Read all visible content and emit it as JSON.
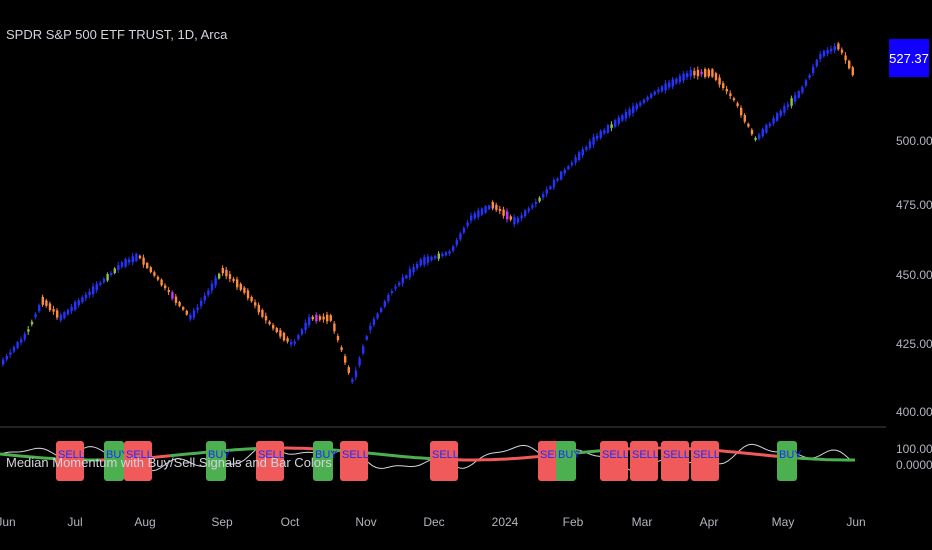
{
  "header": {
    "symbol_title": "SPDR S&P 500 ETF TRUST, 1D, Arca"
  },
  "indicator": {
    "title": "Median Momentum with Buy/Sell Signals and Bar Colors"
  },
  "price": {
    "last_price": "527.37",
    "badge_color": "#1100ff"
  },
  "price_axis": {
    "ticks": [
      "500.00",
      "475.00",
      "450.00",
      "425.00",
      "400.00"
    ]
  },
  "indicator_axis": {
    "ticks": [
      "100.00",
      "0.0000"
    ]
  },
  "time_axis": {
    "ticks": [
      "Jun",
      "Jul",
      "Aug",
      "Sep",
      "Oct",
      "Nov",
      "Dec",
      "2024",
      "Feb",
      "Mar",
      "Apr",
      "May",
      "Jun"
    ]
  },
  "signals": [
    {
      "label": "SELL",
      "type": "sell"
    },
    {
      "label": "BUY",
      "type": "buy"
    },
    {
      "label": "SELL",
      "type": "sell"
    },
    {
      "label": "BUY",
      "type": "buy"
    },
    {
      "label": "SELL",
      "type": "sell"
    },
    {
      "label": "BUY",
      "type": "buy"
    },
    {
      "label": "SELL",
      "type": "sell"
    },
    {
      "label": "SELL",
      "type": "sell"
    },
    {
      "label": "SELL",
      "type": "sell"
    },
    {
      "label": "BUY",
      "type": "buy"
    },
    {
      "label": "SELL",
      "type": "sell"
    },
    {
      "label": "SELL",
      "type": "sell"
    },
    {
      "label": "SELL",
      "type": "sell"
    },
    {
      "label": "SELL",
      "type": "sell"
    },
    {
      "label": "BUY",
      "type": "buy"
    }
  ],
  "colors": {
    "buy_box": "#4caf50",
    "sell_box": "#f05a5a",
    "signal_text": "#1a2cff",
    "median_up": "#4caf50",
    "median_down": "#f05a5a",
    "momentum": "#d1d4dc",
    "bar_up": "#2433ff",
    "bar_down": "#ff8a3d",
    "bar_up_strong": "#8bc34a",
    "bar_down_strong": "#c239ff"
  }
}
